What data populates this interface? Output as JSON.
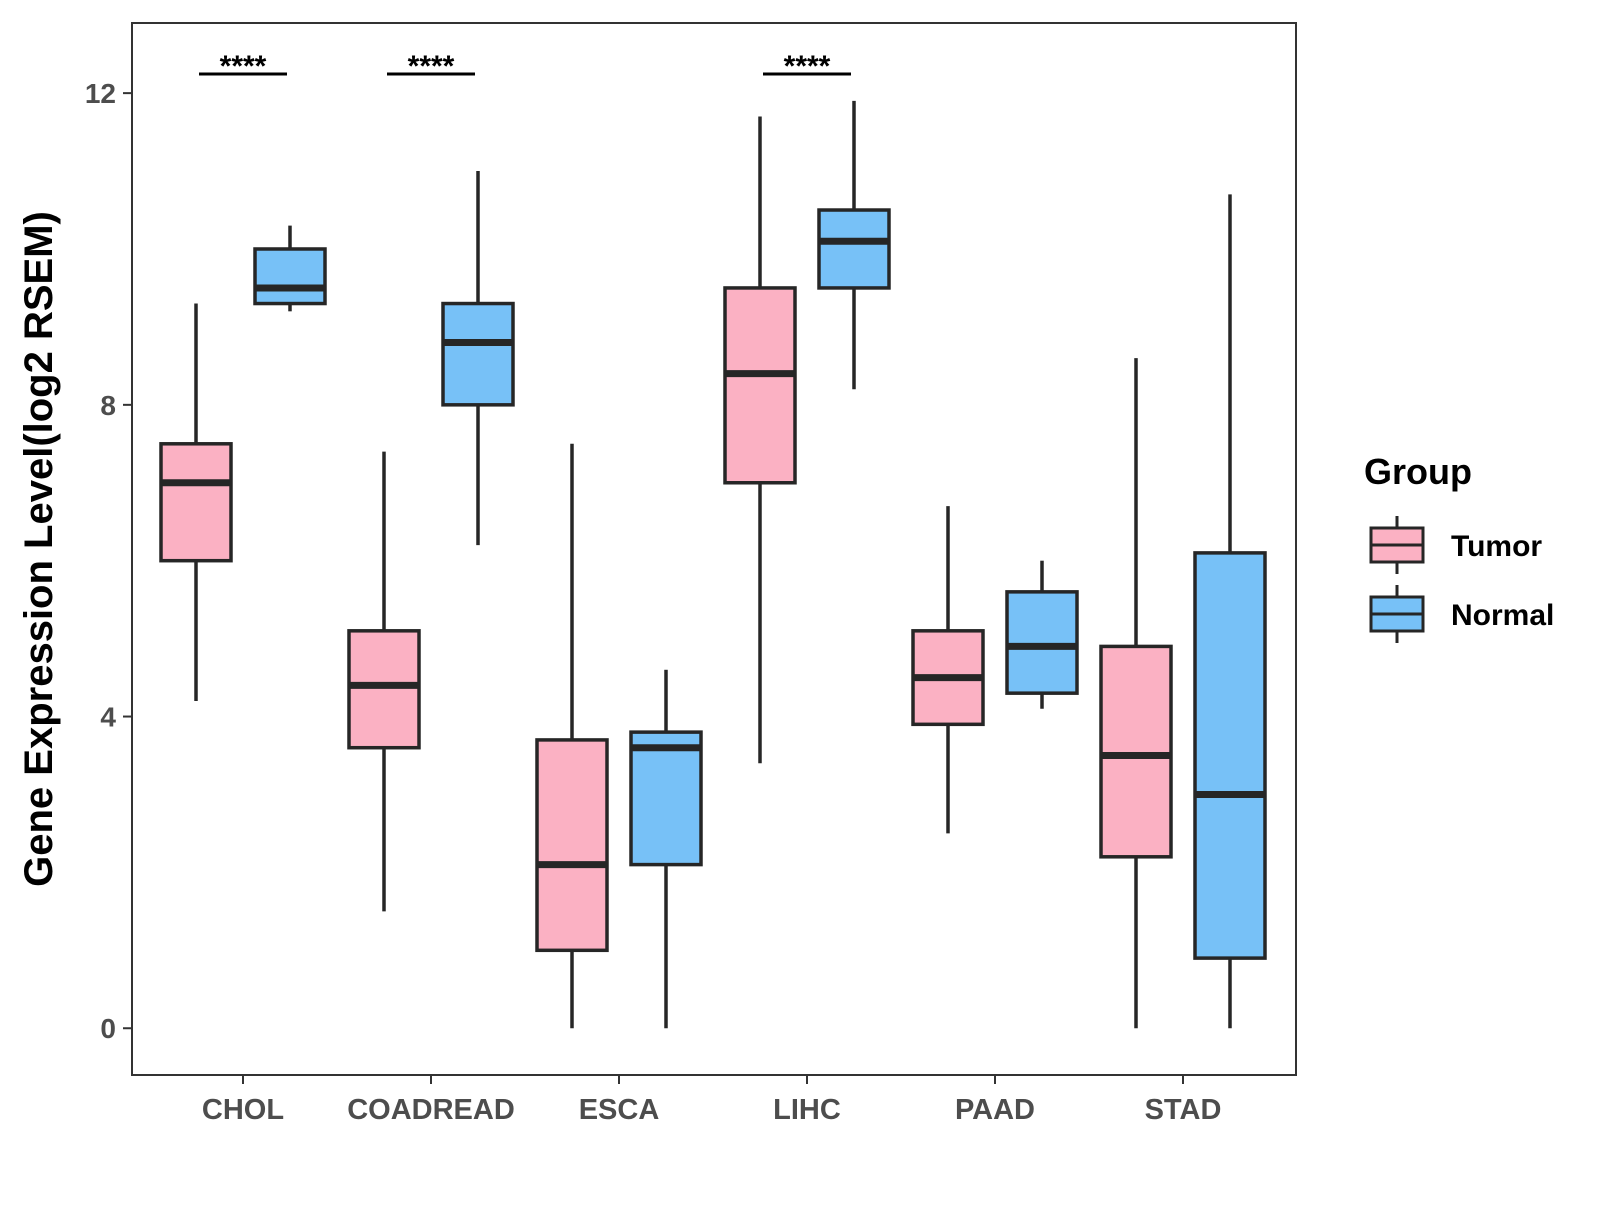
{
  "chart_data": {
    "type": "boxplot",
    "title": "",
    "xlabel": "",
    "ylabel": "Gene Expression Level(log2 RSEM)",
    "ylim": [
      -0.6,
      12.9
    ],
    "yticks": [
      0,
      4,
      8,
      12
    ],
    "categories": [
      "CHOL",
      "COADREAD",
      "ESCA",
      "LIHC",
      "PAAD",
      "STAD"
    ],
    "legend": {
      "title": "Group",
      "position": "right",
      "entries": [
        "Tumor",
        "Normal"
      ]
    },
    "series": [
      {
        "name": "Tumor",
        "color": "#FBB1C3",
        "boxes": [
          {
            "category": "CHOL",
            "min": 4.2,
            "q1": 6.0,
            "median": 7.0,
            "q3": 7.5,
            "max": 9.3
          },
          {
            "category": "COADREAD",
            "min": 1.5,
            "q1": 3.6,
            "median": 4.4,
            "q3": 5.1,
            "max": 7.4
          },
          {
            "category": "ESCA",
            "min": 0.0,
            "q1": 1.0,
            "median": 2.1,
            "q3": 3.7,
            "max": 7.5
          },
          {
            "category": "LIHC",
            "min": 3.4,
            "q1": 7.0,
            "median": 8.4,
            "q3": 9.5,
            "max": 11.7
          },
          {
            "category": "PAAD",
            "min": 2.5,
            "q1": 3.9,
            "median": 4.5,
            "q3": 5.1,
            "max": 6.7
          },
          {
            "category": "STAD",
            "min": 0.0,
            "q1": 2.2,
            "median": 3.5,
            "q3": 4.9,
            "max": 8.6
          }
        ]
      },
      {
        "name": "Normal",
        "color": "#77C1F7",
        "boxes": [
          {
            "category": "CHOL",
            "min": 9.2,
            "q1": 9.3,
            "median": 9.5,
            "q3": 10.0,
            "max": 10.3
          },
          {
            "category": "COADREAD",
            "min": 6.2,
            "q1": 8.0,
            "median": 8.8,
            "q3": 9.3,
            "max": 11.0
          },
          {
            "category": "ESCA",
            "min": 0.0,
            "q1": 2.1,
            "median": 3.6,
            "q3": 3.8,
            "max": 4.6
          },
          {
            "category": "LIHC",
            "min": 8.2,
            "q1": 9.5,
            "median": 10.1,
            "q3": 10.5,
            "max": 11.9
          },
          {
            "category": "PAAD",
            "min": 4.1,
            "q1": 4.3,
            "median": 4.9,
            "q3": 5.6,
            "max": 6.0
          },
          {
            "category": "STAD",
            "min": 0.0,
            "q1": 0.9,
            "median": 3.0,
            "q3": 6.1,
            "max": 10.7
          }
        ]
      }
    ],
    "significance": [
      {
        "category": "CHOL",
        "label": "****"
      },
      {
        "category": "COADREAD",
        "label": "****"
      },
      {
        "category": "LIHC",
        "label": "****"
      }
    ]
  }
}
